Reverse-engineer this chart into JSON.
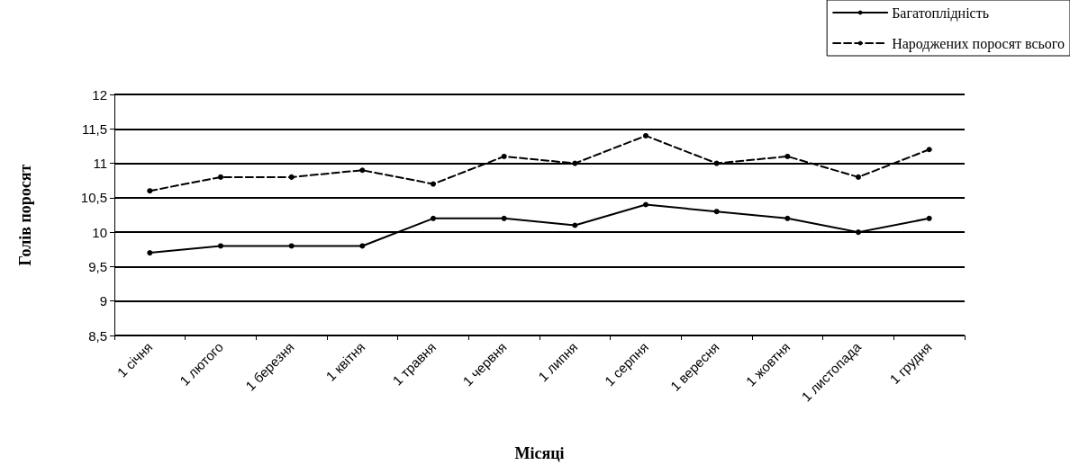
{
  "chart_data": {
    "type": "line",
    "xlabel": "Місяці",
    "ylabel": "Голів поросят",
    "categories": [
      "1 січня",
      "1 лютого",
      "1 березня",
      "1 квітня",
      "1 травня",
      "1 червня",
      "1 липня",
      "1 серпня",
      "1 вересня",
      "1 жовтня",
      "1 листопада",
      "1 грудня"
    ],
    "series": [
      {
        "name": "Багатоплідність",
        "color": "#000000",
        "line_style": "solid",
        "values": [
          9.7,
          9.8,
          9.8,
          9.8,
          10.2,
          10.2,
          10.1,
          10.4,
          10.3,
          10.2,
          10.0,
          10.2
        ]
      },
      {
        "name": "Народжених поросят всього",
        "color": "#000000",
        "line_style": "dashed",
        "values": [
          10.6,
          10.8,
          10.8,
          10.9,
          10.7,
          11.1,
          11.0,
          11.4,
          11.0,
          11.1,
          10.8,
          11.2
        ]
      }
    ],
    "ylim": [
      8.5,
      12
    ],
    "yticks": [
      {
        "value": 8.5,
        "label": "8,5"
      },
      9,
      {
        "value": 9.5,
        "label": "9,5"
      },
      10,
      {
        "value": 10.5,
        "label": "10,5"
      },
      11,
      {
        "value": 11.5,
        "label": "11,5"
      },
      12
    ],
    "grid": "y",
    "legend": "top right",
    "marker": "circle"
  }
}
